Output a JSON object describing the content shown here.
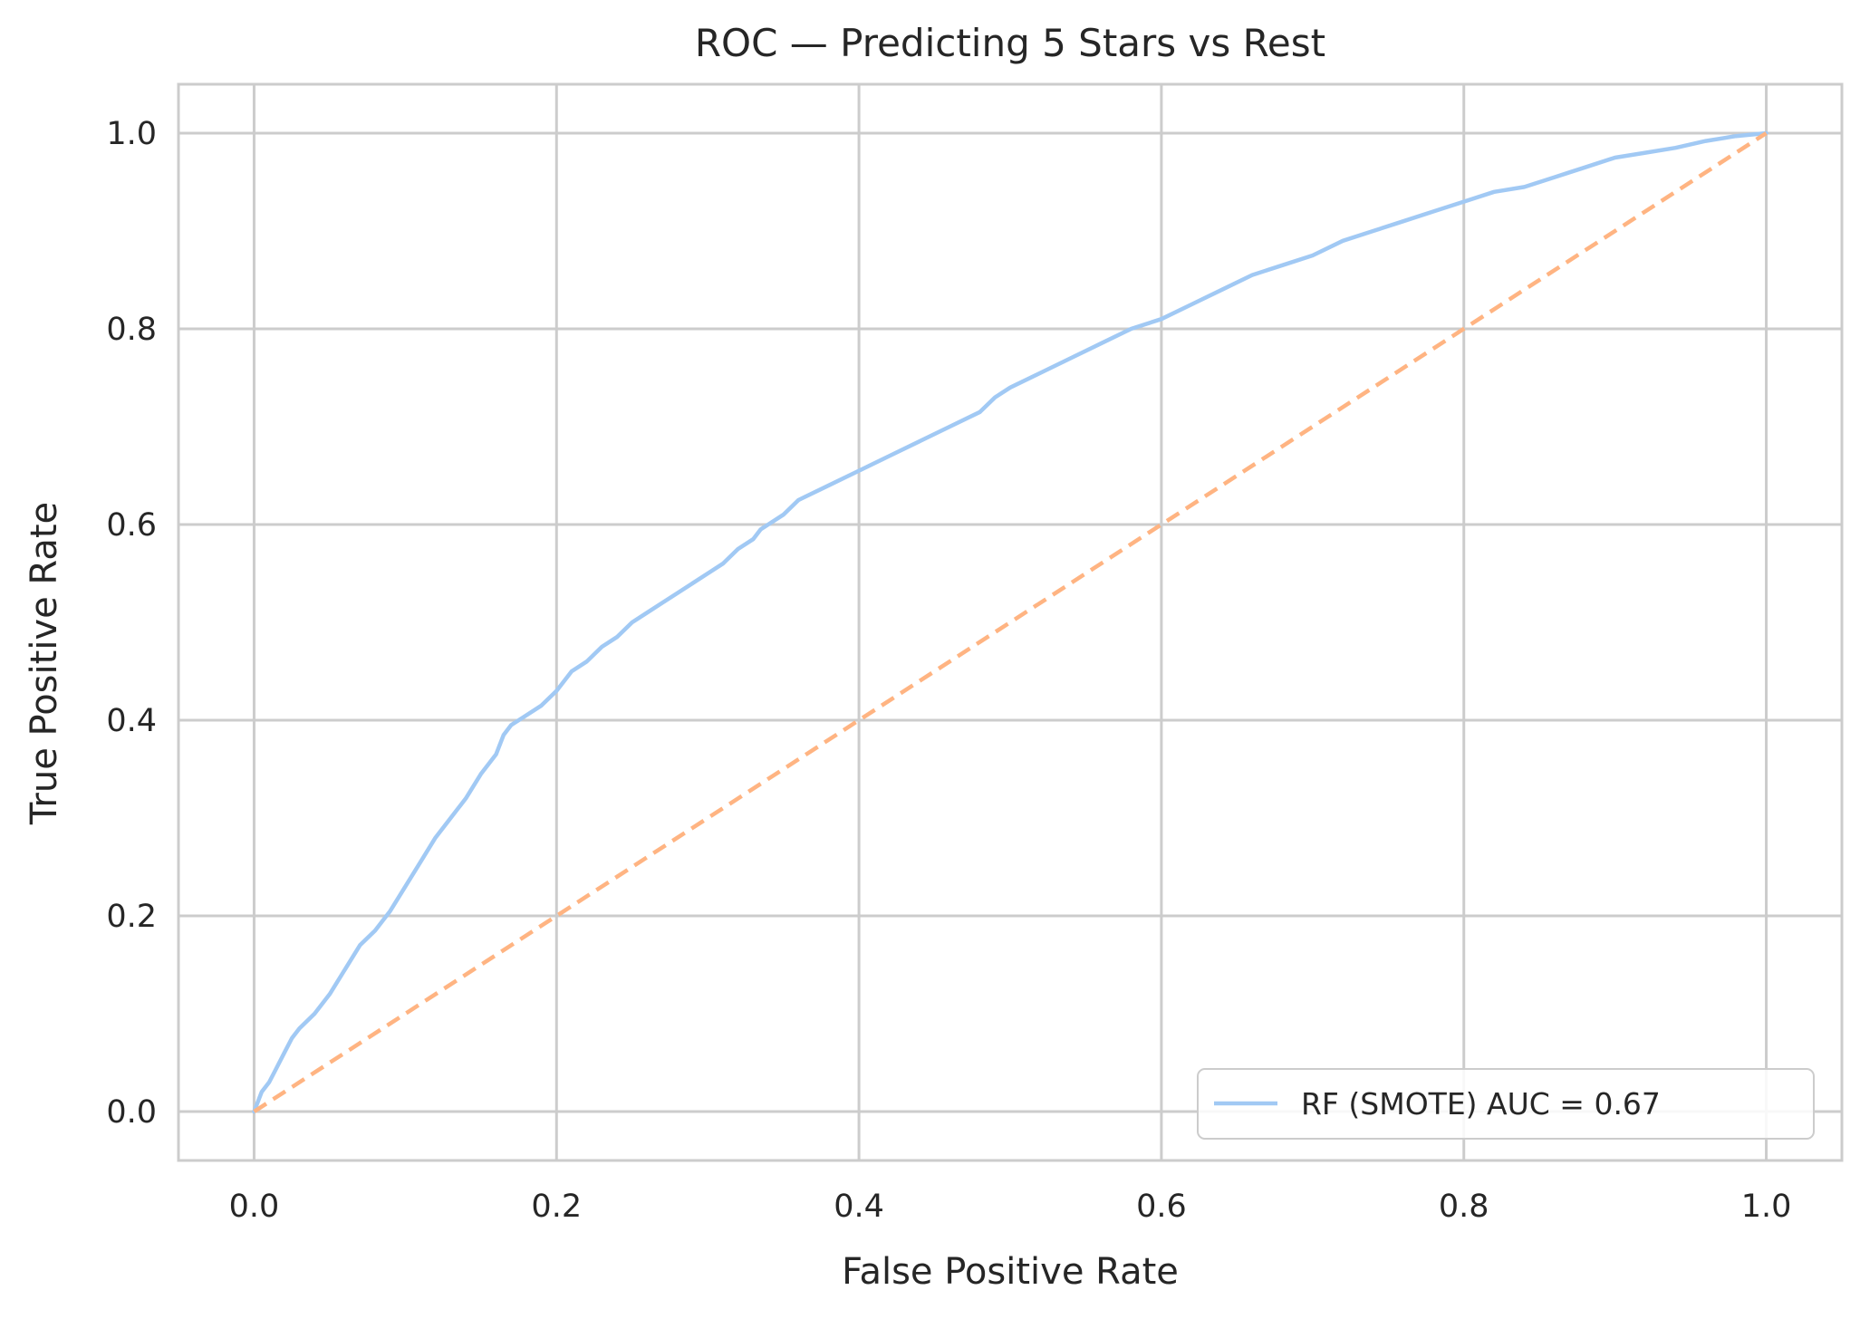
{
  "chart_data": {
    "type": "line",
    "title": "ROC — Predicting 5 Stars vs Rest",
    "xlabel": "False Positive Rate",
    "ylabel": "True Positive Rate",
    "xlim": [
      -0.05,
      1.05
    ],
    "ylim": [
      -0.05,
      1.05
    ],
    "xticks": [
      "0.0",
      "0.2",
      "0.4",
      "0.6",
      "0.8",
      "1.0"
    ],
    "yticks": [
      "0.0",
      "0.2",
      "0.4",
      "0.6",
      "0.8",
      "1.0"
    ],
    "grid": true,
    "legend_position": "lower-right",
    "series": [
      {
        "name": "RF (SMOTE) AUC = 0.67",
        "color": "#a1c9f4",
        "style": "solid",
        "x": [
          0.0,
          0.005,
          0.01,
          0.015,
          0.02,
          0.025,
          0.03,
          0.04,
          0.05,
          0.06,
          0.07,
          0.08,
          0.09,
          0.1,
          0.11,
          0.12,
          0.13,
          0.14,
          0.15,
          0.16,
          0.165,
          0.17,
          0.18,
          0.19,
          0.2,
          0.21,
          0.22,
          0.23,
          0.24,
          0.25,
          0.26,
          0.27,
          0.28,
          0.29,
          0.3,
          0.31,
          0.32,
          0.33,
          0.335,
          0.34,
          0.35,
          0.36,
          0.38,
          0.4,
          0.42,
          0.44,
          0.46,
          0.48,
          0.49,
          0.5,
          0.52,
          0.54,
          0.56,
          0.58,
          0.6,
          0.62,
          0.64,
          0.66,
          0.68,
          0.7,
          0.72,
          0.74,
          0.76,
          0.78,
          0.8,
          0.82,
          0.84,
          0.86,
          0.87,
          0.88,
          0.9,
          0.92,
          0.94,
          0.96,
          0.98,
          1.0
        ],
        "y": [
          0.0,
          0.02,
          0.03,
          0.045,
          0.06,
          0.075,
          0.085,
          0.1,
          0.12,
          0.145,
          0.17,
          0.185,
          0.205,
          0.23,
          0.255,
          0.28,
          0.3,
          0.32,
          0.345,
          0.365,
          0.385,
          0.395,
          0.405,
          0.415,
          0.43,
          0.45,
          0.46,
          0.475,
          0.485,
          0.5,
          0.51,
          0.52,
          0.53,
          0.54,
          0.55,
          0.56,
          0.575,
          0.585,
          0.595,
          0.6,
          0.61,
          0.625,
          0.64,
          0.655,
          0.67,
          0.685,
          0.7,
          0.715,
          0.73,
          0.74,
          0.755,
          0.77,
          0.785,
          0.8,
          0.81,
          0.825,
          0.84,
          0.855,
          0.865,
          0.875,
          0.89,
          0.9,
          0.91,
          0.92,
          0.93,
          0.94,
          0.945,
          0.955,
          0.96,
          0.965,
          0.975,
          0.98,
          0.985,
          0.992,
          0.997,
          1.0
        ]
      },
      {
        "name": "",
        "color": "#ffb482",
        "style": "dashed",
        "x": [
          0.0,
          1.0
        ],
        "y": [
          0.0,
          1.0
        ]
      }
    ]
  }
}
